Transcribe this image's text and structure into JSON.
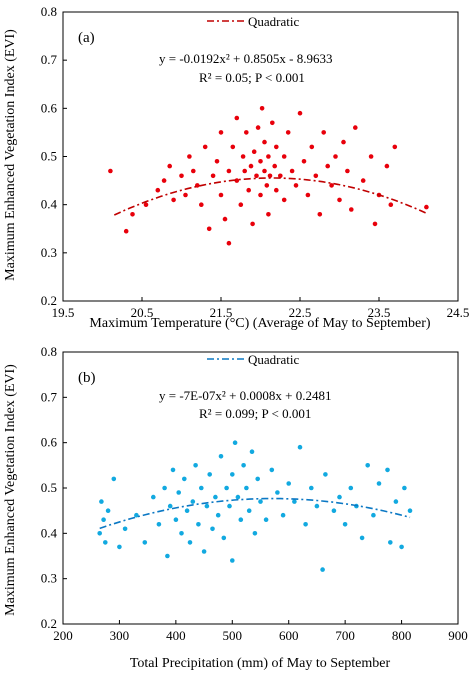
{
  "chart_data": [
    {
      "type": "scatter",
      "panel_label": "(a)",
      "ylabel": "Maximum Enhanced Vegetation Index (EVI)",
      "xlabel": "Maximum Temperature (°C) (Average of May to September)",
      "xlim": [
        19.5,
        24.5
      ],
      "ylim": [
        0.2,
        0.8
      ],
      "x_ticks": [
        19.5,
        20.5,
        21.5,
        22.5,
        23.5,
        24.5
      ],
      "x_tick_labels": [
        "19.5",
        "20.5",
        "21.5",
        "22.5",
        "23.5",
        "24.5"
      ],
      "y_ticks": [
        0.2,
        0.3,
        0.4,
        0.5,
        0.6,
        0.7,
        0.8
      ],
      "y_tick_labels": [
        "0.2",
        "0.3",
        "0.4",
        "0.5",
        "0.6",
        "0.7",
        "0.8"
      ],
      "point_color": "#e8000b",
      "trend_color": "#c00000",
      "legend": {
        "label": "Quadratic",
        "placement": "top-center"
      },
      "equation": "y = -0.0192x² + 0.8505x - 8.9633",
      "stats": "R² = 0.05; P < 0.001",
      "grid": false,
      "fit": {
        "a": -0.0192,
        "b": 0.8505,
        "c": -8.9633,
        "x_range": [
          20.15,
          24.1
        ]
      },
      "points": [
        [
          20.1,
          0.47
        ],
        [
          20.3,
          0.345
        ],
        [
          20.38,
          0.38
        ],
        [
          20.55,
          0.4
        ],
        [
          20.7,
          0.43
        ],
        [
          20.78,
          0.45
        ],
        [
          20.85,
          0.48
        ],
        [
          20.9,
          0.41
        ],
        [
          21.0,
          0.46
        ],
        [
          21.05,
          0.42
        ],
        [
          21.1,
          0.5
        ],
        [
          21.15,
          0.47
        ],
        [
          21.2,
          0.44
        ],
        [
          21.25,
          0.4
        ],
        [
          21.3,
          0.52
        ],
        [
          21.35,
          0.35
        ],
        [
          21.4,
          0.46
        ],
        [
          21.45,
          0.49
        ],
        [
          21.5,
          0.42
        ],
        [
          21.5,
          0.55
        ],
        [
          21.55,
          0.37
        ],
        [
          21.6,
          0.47
        ],
        [
          21.6,
          0.32
        ],
        [
          21.65,
          0.52
        ],
        [
          21.7,
          0.45
        ],
        [
          21.7,
          0.58
        ],
        [
          21.75,
          0.4
        ],
        [
          21.78,
          0.5
        ],
        [
          21.8,
          0.47
        ],
        [
          21.82,
          0.55
        ],
        [
          21.85,
          0.43
        ],
        [
          21.88,
          0.48
        ],
        [
          21.9,
          0.36
        ],
        [
          21.92,
          0.51
        ],
        [
          21.95,
          0.46
        ],
        [
          21.97,
          0.56
        ],
        [
          22.0,
          0.49
        ],
        [
          22.0,
          0.42
        ],
        [
          22.02,
          0.6
        ],
        [
          22.05,
          0.47
        ],
        [
          22.05,
          0.53
        ],
        [
          22.08,
          0.44
        ],
        [
          22.1,
          0.5
        ],
        [
          22.1,
          0.38
        ],
        [
          22.12,
          0.46
        ],
        [
          22.15,
          0.57
        ],
        [
          22.18,
          0.48
        ],
        [
          22.2,
          0.43
        ],
        [
          22.2,
          0.52
        ],
        [
          22.25,
          0.46
        ],
        [
          22.3,
          0.5
        ],
        [
          22.3,
          0.41
        ],
        [
          22.35,
          0.55
        ],
        [
          22.4,
          0.47
        ],
        [
          22.45,
          0.44
        ],
        [
          22.5,
          0.59
        ],
        [
          22.55,
          0.49
        ],
        [
          22.6,
          0.42
        ],
        [
          22.65,
          0.52
        ],
        [
          22.7,
          0.46
        ],
        [
          22.75,
          0.38
        ],
        [
          22.8,
          0.55
        ],
        [
          22.85,
          0.48
        ],
        [
          22.9,
          0.44
        ],
        [
          22.95,
          0.5
        ],
        [
          23.0,
          0.41
        ],
        [
          23.05,
          0.53
        ],
        [
          23.1,
          0.47
        ],
        [
          23.15,
          0.39
        ],
        [
          23.2,
          0.56
        ],
        [
          23.3,
          0.45
        ],
        [
          23.4,
          0.5
        ],
        [
          23.45,
          0.36
        ],
        [
          23.5,
          0.42
        ],
        [
          23.6,
          0.48
        ],
        [
          23.7,
          0.52
        ],
        [
          23.65,
          0.4
        ],
        [
          24.1,
          0.395
        ]
      ]
    },
    {
      "type": "scatter",
      "panel_label": "(b)",
      "ylabel": "Maximum Enhanced Vegetation Index (EVI)",
      "xlabel": "Total Precipitation (mm) of May to September",
      "xlim": [
        200,
        900
      ],
      "ylim": [
        0.2,
        0.8
      ],
      "x_ticks": [
        200,
        300,
        400,
        500,
        600,
        700,
        800,
        900
      ],
      "x_tick_labels": [
        "200",
        "300",
        "400",
        "500",
        "600",
        "700",
        "800",
        "900"
      ],
      "y_ticks": [
        0.2,
        0.3,
        0.4,
        0.5,
        0.6,
        0.7,
        0.8
      ],
      "y_tick_labels": [
        "0.2",
        "0.3",
        "0.4",
        "0.5",
        "0.6",
        "0.7",
        "0.8"
      ],
      "point_color": "#12a9e0",
      "trend_color": "#0b78c4",
      "legend": {
        "label": "Quadratic",
        "placement": "top-center"
      },
      "equation": "y = -7E-07x² + 0.0008x + 0.2481",
      "stats": "R² = 0.099; P < 0.001",
      "grid": false,
      "fit": {
        "a": -7e-07,
        "b": 0.0008,
        "c": 0.2481,
        "x_range": [
          265,
          815
        ]
      },
      "points": [
        [
          265,
          0.4
        ],
        [
          268,
          0.47
        ],
        [
          272,
          0.43
        ],
        [
          275,
          0.38
        ],
        [
          280,
          0.45
        ],
        [
          290,
          0.52
        ],
        [
          300,
          0.37
        ],
        [
          310,
          0.41
        ],
        [
          330,
          0.44
        ],
        [
          345,
          0.38
        ],
        [
          360,
          0.48
        ],
        [
          370,
          0.42
        ],
        [
          380,
          0.5
        ],
        [
          385,
          0.35
        ],
        [
          390,
          0.46
        ],
        [
          395,
          0.54
        ],
        [
          400,
          0.43
        ],
        [
          405,
          0.49
        ],
        [
          410,
          0.4
        ],
        [
          415,
          0.52
        ],
        [
          420,
          0.45
        ],
        [
          425,
          0.38
        ],
        [
          430,
          0.47
        ],
        [
          435,
          0.55
        ],
        [
          440,
          0.42
        ],
        [
          445,
          0.5
        ],
        [
          450,
          0.36
        ],
        [
          455,
          0.46
        ],
        [
          460,
          0.53
        ],
        [
          465,
          0.41
        ],
        [
          470,
          0.48
        ],
        [
          475,
          0.44
        ],
        [
          480,
          0.57
        ],
        [
          485,
          0.39
        ],
        [
          490,
          0.5
        ],
        [
          495,
          0.46
        ],
        [
          500,
          0.34
        ],
        [
          500,
          0.53
        ],
        [
          505,
          0.6
        ],
        [
          510,
          0.48
        ],
        [
          515,
          0.43
        ],
        [
          520,
          0.55
        ],
        [
          525,
          0.5
        ],
        [
          530,
          0.45
        ],
        [
          535,
          0.58
        ],
        [
          540,
          0.4
        ],
        [
          545,
          0.52
        ],
        [
          550,
          0.47
        ],
        [
          560,
          0.43
        ],
        [
          570,
          0.54
        ],
        [
          580,
          0.49
        ],
        [
          590,
          0.44
        ],
        [
          600,
          0.51
        ],
        [
          610,
          0.47
        ],
        [
          620,
          0.59
        ],
        [
          630,
          0.42
        ],
        [
          640,
          0.5
        ],
        [
          650,
          0.46
        ],
        [
          660,
          0.32
        ],
        [
          665,
          0.53
        ],
        [
          680,
          0.45
        ],
        [
          690,
          0.48
        ],
        [
          700,
          0.42
        ],
        [
          710,
          0.5
        ],
        [
          720,
          0.46
        ],
        [
          730,
          0.39
        ],
        [
          740,
          0.55
        ],
        [
          750,
          0.44
        ],
        [
          760,
          0.51
        ],
        [
          775,
          0.54
        ],
        [
          780,
          0.38
        ],
        [
          790,
          0.47
        ],
        [
          800,
          0.37
        ],
        [
          805,
          0.5
        ],
        [
          815,
          0.45
        ]
      ]
    }
  ]
}
